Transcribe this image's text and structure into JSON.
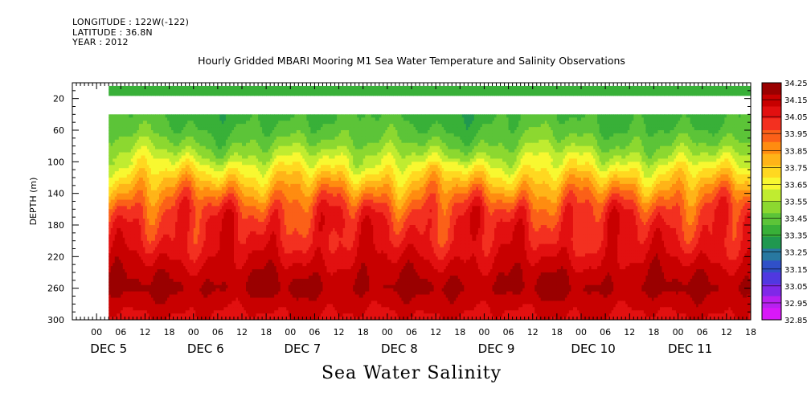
{
  "meta": {
    "longitude": "LONGITUDE : 122W(-122)",
    "latitude": "LATITUDE : 36.8N",
    "year": "YEAR : 2012"
  },
  "chart_data": {
    "type": "heatmap",
    "title": "Hourly Gridded MBARI Mooring M1 Sea Water Temperature and Salinity Observations",
    "bottom_title": "Sea Water Salinity",
    "ylabel": "DEPTH (m)",
    "y_inverted": true,
    "ylim": [
      300,
      0
    ],
    "y_ticks": [
      20,
      60,
      100,
      140,
      180,
      220,
      260,
      300
    ],
    "x_hour_ticks": [
      "00",
      "06",
      "12",
      "18",
      "00",
      "06",
      "12",
      "18",
      "00",
      "06",
      "12",
      "18",
      "00",
      "06",
      "12",
      "18",
      "00",
      "06",
      "12",
      "18",
      "00",
      "06",
      "12",
      "18",
      "00",
      "06",
      "12",
      "18"
    ],
    "x_day_labels": [
      "DEC  5",
      "DEC  6",
      "DEC  7",
      "DEC  8",
      "DEC  9",
      "DEC 10",
      "DEC 11"
    ],
    "xlim_hours": [
      -6,
      162
    ],
    "data_start_hour": 3,
    "data_gap_depth": [
      14,
      40
    ],
    "colorbar": {
      "levels": [
        "34.25",
        "34.15",
        "34.05",
        "33.95",
        "33.85",
        "33.75",
        "33.65",
        "33.55",
        "33.45",
        "33.35",
        "33.25",
        "33.15",
        "33.05",
        "32.95",
        "32.85"
      ],
      "colors": [
        "#9a0000",
        "#c80000",
        "#e21010",
        "#f33020",
        "#fb6018",
        "#ff8c10",
        "#ffb418",
        "#ffd820",
        "#f8f830",
        "#c0ec30",
        "#8cd830",
        "#5cc438",
        "#38b038",
        "#209850",
        "#2878a0",
        "#3050c8",
        "#5038e0",
        "#8028e8",
        "#b820f0",
        "#d818f8"
      ]
    },
    "depth_profile": [
      {
        "depth": 10,
        "salinity": 33.37
      },
      {
        "depth": 40,
        "salinity": 33.38
      },
      {
        "depth": 60,
        "salinity": 33.42
      },
      {
        "depth": 80,
        "salinity": 33.5
      },
      {
        "depth": 100,
        "salinity": 33.62
      },
      {
        "depth": 120,
        "salinity": 33.76
      },
      {
        "depth": 140,
        "salinity": 33.9
      },
      {
        "depth": 160,
        "salinity": 34.02
      },
      {
        "depth": 180,
        "salinity": 34.07
      },
      {
        "depth": 200,
        "salinity": 34.09
      },
      {
        "depth": 220,
        "salinity": 34.14
      },
      {
        "depth": 240,
        "salinity": 34.2
      },
      {
        "depth": 260,
        "salinity": 34.24
      },
      {
        "depth": 280,
        "salinity": 34.18
      },
      {
        "depth": 300,
        "salinity": 34.13
      }
    ]
  }
}
